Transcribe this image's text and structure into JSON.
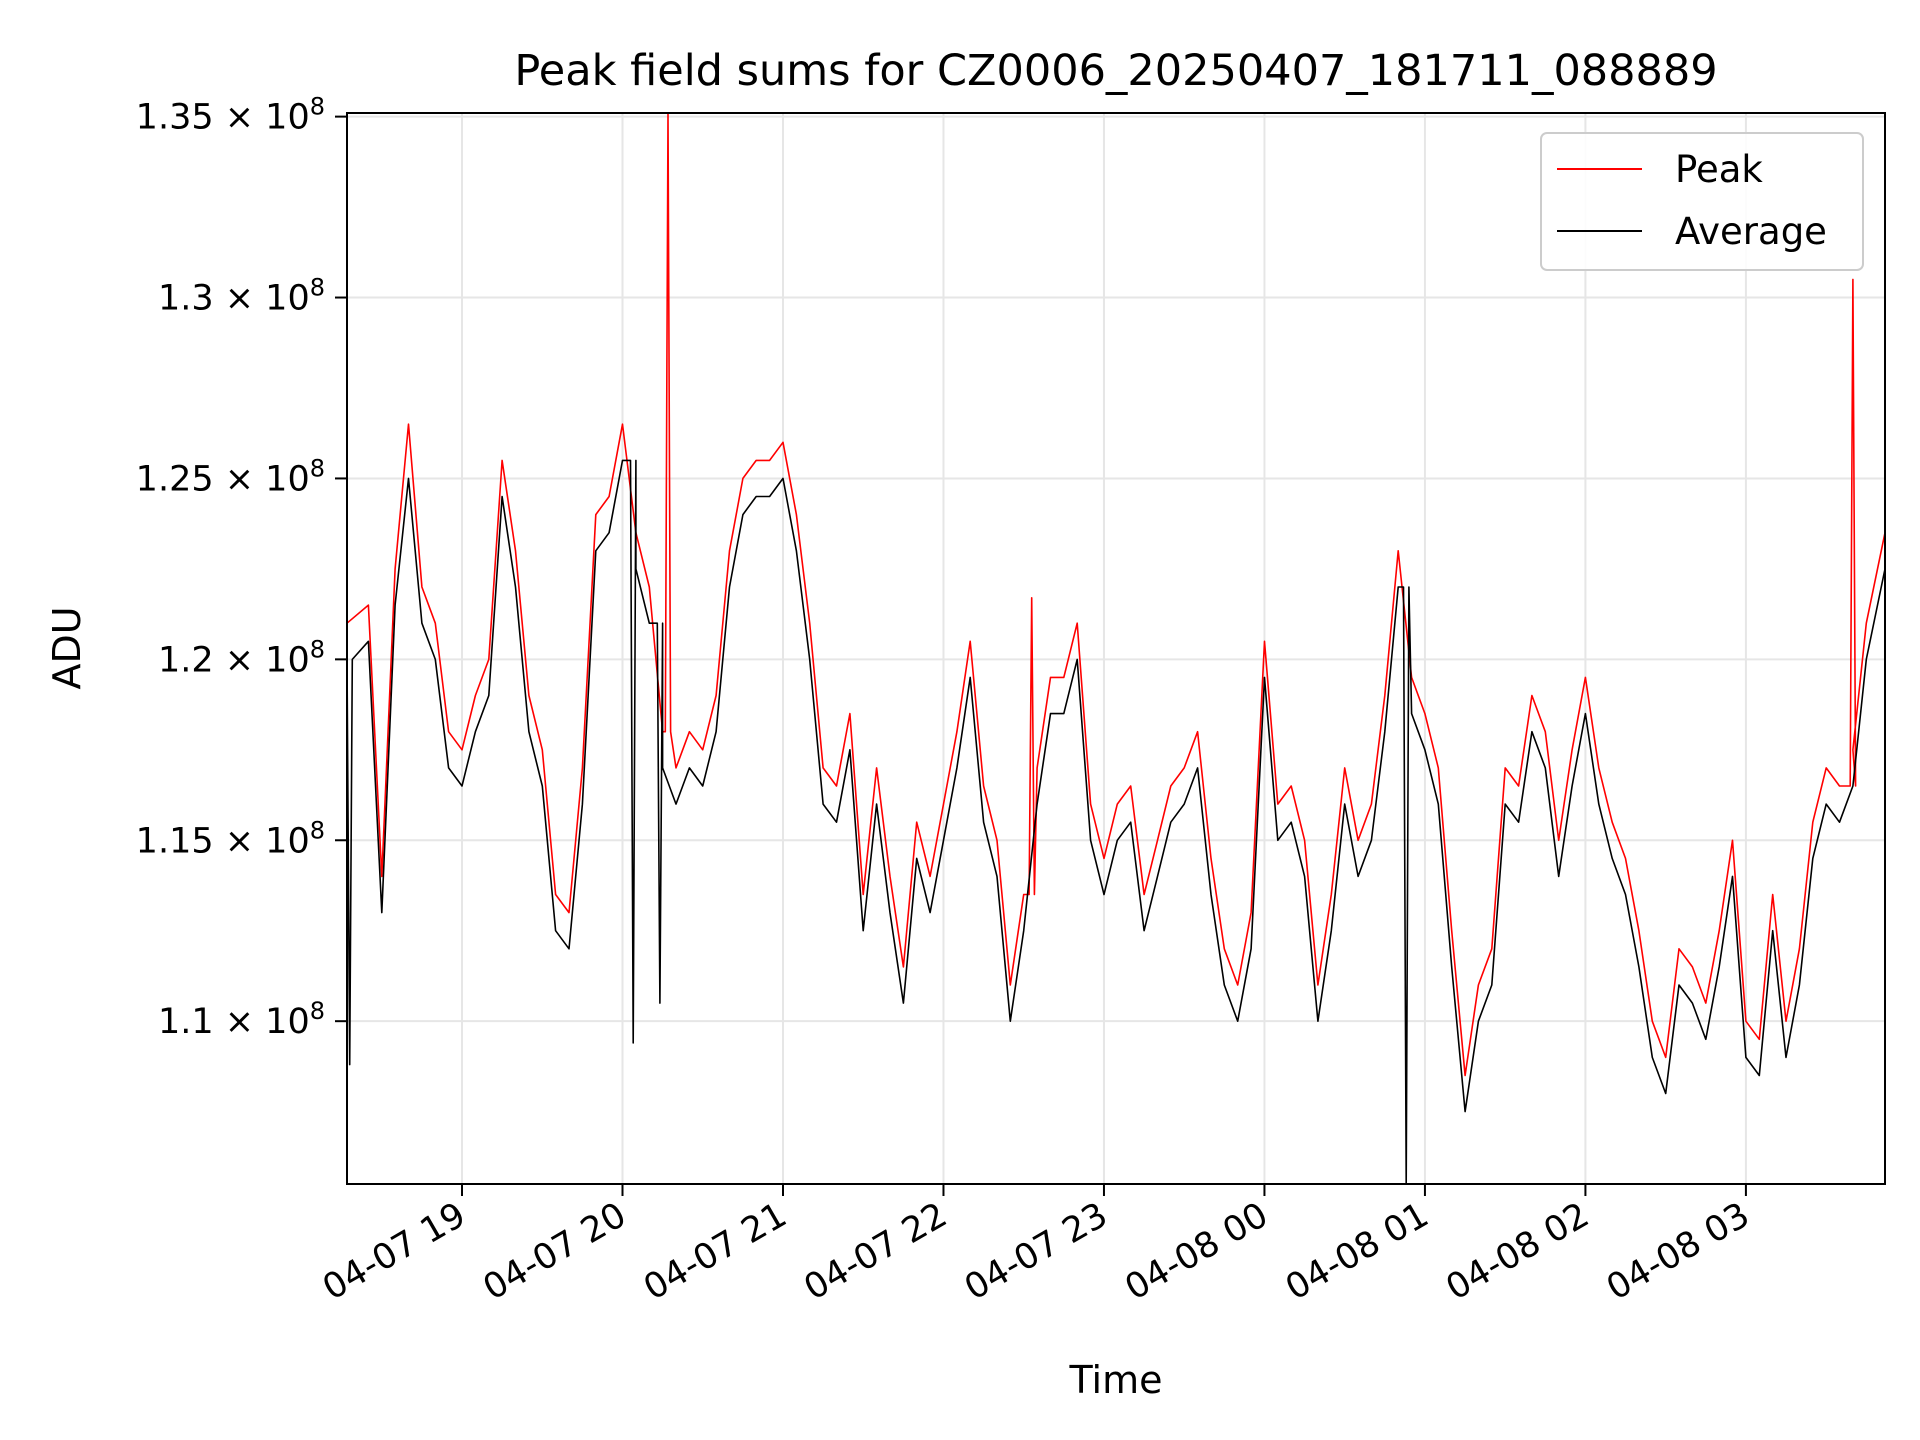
{
  "chart_data": {
    "type": "line",
    "title": "Peak field sums for CZ0006_20250407_181711_088889",
    "xlabel": "Time",
    "ylabel": "ADU",
    "grid": true,
    "legend_position": "top-right",
    "x_ticks": [
      "04-07 19",
      "04-07 20",
      "04-07 21",
      "04-07 22",
      "04-07 23",
      "04-08 00",
      "04-08 01",
      "04-08 02",
      "04-08 03"
    ],
    "y_ticks": [
      {
        "value": 110000000,
        "mantissa": "1.1"
      },
      {
        "value": 115000000,
        "mantissa": "1.15"
      },
      {
        "value": 120000000,
        "mantissa": "1.2"
      },
      {
        "value": 125000000,
        "mantissa": "1.25"
      },
      {
        "value": 130000000,
        "mantissa": "1.3"
      },
      {
        "value": 135000000,
        "mantissa": "1.35"
      }
    ],
    "y_tick_base": "10",
    "y_tick_exponent": "8",
    "xlim": [
      "2025-04-07 18:17",
      "2025-04-08 03:52"
    ],
    "ylim": [
      105500000,
      135100000
    ],
    "series": [
      {
        "name": "Peak",
        "color": "#ff0000"
      },
      {
        "name": "Average",
        "color": "#000000"
      }
    ],
    "x_times": [
      "2025-04-07 18:17",
      "2025-04-07 18:25",
      "2025-04-07 18:30",
      "2025-04-07 18:35",
      "2025-04-07 18:40",
      "2025-04-07 18:45",
      "2025-04-07 18:50",
      "2025-04-07 18:55",
      "2025-04-07 19:00",
      "2025-04-07 19:05",
      "2025-04-07 19:10",
      "2025-04-07 19:15",
      "2025-04-07 19:20",
      "2025-04-07 19:25",
      "2025-04-07 19:30",
      "2025-04-07 19:35",
      "2025-04-07 19:40",
      "2025-04-07 19:45",
      "2025-04-07 19:50",
      "2025-04-07 19:55",
      "2025-04-07 20:00",
      "2025-04-07 20:05",
      "2025-04-07 20:10",
      "2025-04-07 20:15",
      "2025-04-07 20:20",
      "2025-04-07 20:25",
      "2025-04-07 20:30",
      "2025-04-07 20:35",
      "2025-04-07 20:40",
      "2025-04-07 20:45",
      "2025-04-07 20:50",
      "2025-04-07 20:55",
      "2025-04-07 21:00",
      "2025-04-07 21:05",
      "2025-04-07 21:10",
      "2025-04-07 21:15",
      "2025-04-07 21:20",
      "2025-04-07 21:25",
      "2025-04-07 21:30",
      "2025-04-07 21:35",
      "2025-04-07 21:40",
      "2025-04-07 21:45",
      "2025-04-07 21:50",
      "2025-04-07 21:55",
      "2025-04-07 22:00",
      "2025-04-07 22:05",
      "2025-04-07 22:10",
      "2025-04-07 22:15",
      "2025-04-07 22:20",
      "2025-04-07 22:25",
      "2025-04-07 22:30",
      "2025-04-07 22:35",
      "2025-04-07 22:40",
      "2025-04-07 22:45",
      "2025-04-07 22:50",
      "2025-04-07 22:55",
      "2025-04-07 23:00",
      "2025-04-07 23:05",
      "2025-04-07 23:10",
      "2025-04-07 23:15",
      "2025-04-07 23:20",
      "2025-04-07 23:25",
      "2025-04-07 23:30",
      "2025-04-07 23:35",
      "2025-04-07 23:40",
      "2025-04-07 23:45",
      "2025-04-07 23:50",
      "2025-04-07 23:55",
      "2025-04-08 00:00",
      "2025-04-08 00:05",
      "2025-04-08 00:10",
      "2025-04-08 00:15",
      "2025-04-08 00:20",
      "2025-04-08 00:25",
      "2025-04-08 00:30",
      "2025-04-08 00:35",
      "2025-04-08 00:40",
      "2025-04-08 00:45",
      "2025-04-08 00:50",
      "2025-04-08 00:55",
      "2025-04-08 01:00",
      "2025-04-08 01:05",
      "2025-04-08 01:10",
      "2025-04-08 01:15",
      "2025-04-08 01:20",
      "2025-04-08 01:25",
      "2025-04-08 01:30",
      "2025-04-08 01:35",
      "2025-04-08 01:40",
      "2025-04-08 01:45",
      "2025-04-08 01:50",
      "2025-04-08 01:55",
      "2025-04-08 02:00",
      "2025-04-08 02:05",
      "2025-04-08 02:10",
      "2025-04-08 02:15",
      "2025-04-08 02:20",
      "2025-04-08 02:25",
      "2025-04-08 02:30",
      "2025-04-08 02:35",
      "2025-04-08 02:40",
      "2025-04-08 02:45",
      "2025-04-08 02:50",
      "2025-04-08 02:55",
      "2025-04-08 03:00",
      "2025-04-08 03:05",
      "2025-04-08 03:10",
      "2025-04-08 03:15",
      "2025-04-08 03:20",
      "2025-04-08 03:25",
      "2025-04-08 03:30",
      "2025-04-08 03:35",
      "2025-04-08 03:40",
      "2025-04-08 03:45",
      "2025-04-08 03:52"
    ],
    "peak_values": [
      121000000,
      121500000,
      114000000,
      122500000,
      126500000,
      122000000,
      121000000,
      118000000,
      117500000,
      119000000,
      120000000,
      125500000,
      123000000,
      119000000,
      117500000,
      113500000,
      113000000,
      117000000,
      124000000,
      124500000,
      126500000,
      123500000,
      122000000,
      118000000,
      117000000,
      118000000,
      117500000,
      119000000,
      123000000,
      125000000,
      125500000,
      125500000,
      126000000,
      124000000,
      121000000,
      117000000,
      116500000,
      118500000,
      113500000,
      117000000,
      114000000,
      111500000,
      115500000,
      114000000,
      116000000,
      118000000,
      120500000,
      116500000,
      115000000,
      111000000,
      113500000,
      117000000,
      119500000,
      119500000,
      121000000,
      116000000,
      114500000,
      116000000,
      116500000,
      113500000,
      115000000,
      116500000,
      117000000,
      118000000,
      114500000,
      112000000,
      111000000,
      113000000,
      120500000,
      116000000,
      116500000,
      115000000,
      111000000,
      113500000,
      117000000,
      115000000,
      116000000,
      119000000,
      123000000,
      119500000,
      118500000,
      117000000,
      112500000,
      108500000,
      111000000,
      112000000,
      117000000,
      116500000,
      119000000,
      118000000,
      115000000,
      117500000,
      119500000,
      117000000,
      115500000,
      114500000,
      112500000,
      110000000,
      109000000,
      112000000,
      111500000,
      110500000,
      112500000,
      115000000,
      110000000,
      109500000,
      113500000,
      110000000,
      112000000,
      115500000,
      117000000,
      116500000,
      117500000,
      121000000,
      123500000
    ],
    "average_values": [
      120000000,
      120500000,
      113000000,
      121500000,
      125000000,
      121000000,
      120000000,
      117000000,
      116500000,
      118000000,
      119000000,
      124500000,
      122000000,
      118000000,
      116500000,
      112500000,
      112000000,
      116000000,
      123000000,
      123500000,
      125500000,
      122500000,
      121000000,
      117000000,
      116000000,
      117000000,
      116500000,
      118000000,
      122000000,
      124000000,
      124500000,
      124500000,
      125000000,
      123000000,
      120000000,
      116000000,
      115500000,
      117500000,
      112500000,
      116000000,
      113000000,
      110500000,
      114500000,
      113000000,
      115000000,
      117000000,
      119500000,
      115500000,
      114000000,
      110000000,
      112500000,
      116000000,
      118500000,
      118500000,
      120000000,
      115000000,
      113500000,
      115000000,
      115500000,
      112500000,
      114000000,
      115500000,
      116000000,
      117000000,
      113500000,
      111000000,
      110000000,
      112000000,
      119500000,
      115000000,
      115500000,
      114000000,
      110000000,
      112500000,
      116000000,
      114000000,
      115000000,
      118000000,
      122000000,
      118500000,
      117500000,
      116000000,
      111500000,
      107500000,
      110000000,
      111000000,
      116000000,
      115500000,
      118000000,
      117000000,
      114000000,
      116500000,
      118500000,
      116000000,
      114500000,
      113500000,
      111500000,
      109000000,
      108000000,
      111000000,
      110500000,
      109500000,
      111500000,
      114000000,
      109000000,
      108500000,
      112500000,
      109000000,
      111000000,
      114500000,
      116000000,
      115500000,
      116500000,
      120000000,
      122500000
    ],
    "spikes": [
      {
        "series": "Peak",
        "x": "2025-04-07 20:17",
        "y": 135100000
      },
      {
        "series": "Peak",
        "x": "2025-04-07 22:33",
        "y": 121700000
      },
      {
        "series": "Peak",
        "x": "2025-04-08 03:40",
        "y": 130500000
      },
      {
        "series": "Average",
        "x": "2025-04-07 18:18",
        "y": 108800000
      },
      {
        "series": "Average",
        "x": "2025-04-07 20:04",
        "y": 109400000
      },
      {
        "series": "Average",
        "x": "2025-04-07 20:14",
        "y": 110500000
      },
      {
        "series": "Average",
        "x": "2025-04-08 00:53",
        "y": 105500000
      }
    ]
  }
}
